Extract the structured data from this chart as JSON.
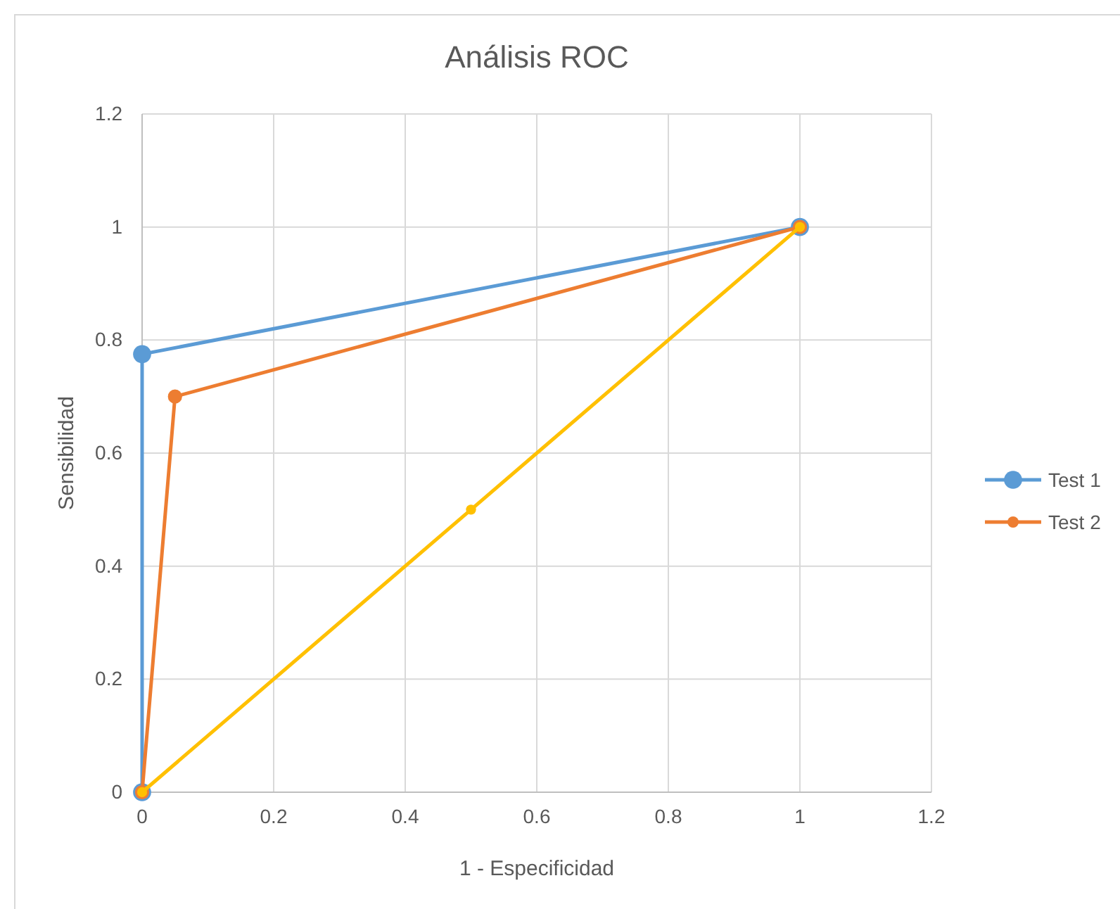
{
  "chart_data": {
    "type": "line",
    "title": "Análisis ROC",
    "xlabel": "1 - Especificidad",
    "ylabel": "Sensibilidad",
    "xlim": [
      0,
      1.2
    ],
    "xticks": [
      0,
      0.2,
      0.4,
      0.6,
      0.8,
      1,
      1.2
    ],
    "ylim": [
      0,
      1.2
    ],
    "yticks": [
      0,
      0.2,
      0.4,
      0.6,
      0.8,
      1,
      1.2
    ],
    "grid": true,
    "legend": "right",
    "marker": "circle",
    "series": [
      {
        "name": "Test 1",
        "color": "#5b9bd5",
        "x": [
          0,
          0,
          1
        ],
        "values": [
          0,
          0.775,
          1
        ]
      },
      {
        "name": "Test 2",
        "color": "#ed7d31",
        "x": [
          0,
          0.05,
          1
        ],
        "values": [
          0,
          0.7,
          1
        ]
      },
      {
        "color": "#ffc000",
        "x": [
          0,
          0.5,
          1
        ],
        "values": [
          0,
          0.5,
          1
        ]
      }
    ]
  }
}
